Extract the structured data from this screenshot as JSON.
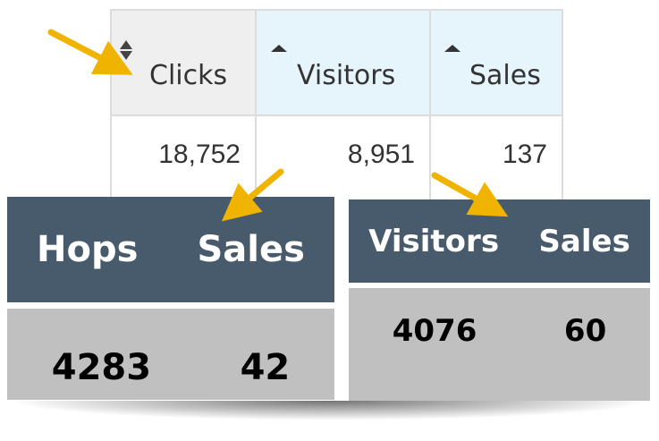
{
  "top_table": {
    "headers": [
      "Clicks",
      "Visitors",
      "Sales"
    ],
    "rows": [
      [
        "18,752",
        "8,951",
        "137"
      ]
    ]
  },
  "left_table": {
    "headers": [
      "Hops",
      "Sales"
    ],
    "rows": [
      [
        "4283",
        "42"
      ]
    ]
  },
  "right_table": {
    "headers": [
      "Visitors",
      "Sales"
    ],
    "rows": [
      [
        "4076",
        "60"
      ]
    ]
  }
}
